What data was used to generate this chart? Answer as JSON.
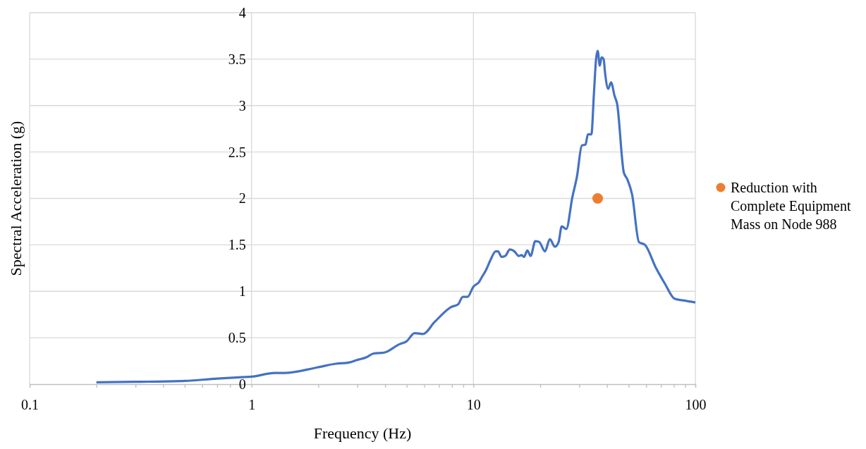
{
  "chart_data": {
    "type": "line",
    "xlabel": "Frequency (Hz)",
    "ylabel": "Spectral Acceleration (g)",
    "log": "x",
    "grid": true,
    "legend": "right",
    "marker": "none",
    "line_style": "solid",
    "xlim": [
      0.1,
      100
    ],
    "ylim": [
      0,
      4
    ],
    "xticks": [
      0.1,
      {
        "value": 0.2,
        "label": null
      },
      {
        "value": 0.3,
        "label": null
      },
      {
        "value": 0.4,
        "label": null
      },
      {
        "value": 0.5,
        "label": null
      },
      {
        "value": 0.6,
        "label": null
      },
      {
        "value": 0.7,
        "label": null
      },
      {
        "value": 0.8,
        "label": null
      },
      {
        "value": 0.9,
        "label": null
      },
      1,
      {
        "value": 2,
        "label": null
      },
      {
        "value": 3,
        "label": null
      },
      {
        "value": 4,
        "label": null
      },
      {
        "value": 5,
        "label": null
      },
      {
        "value": 6,
        "label": null
      },
      {
        "value": 7,
        "label": null
      },
      {
        "value": 8,
        "label": null
      },
      {
        "value": 9,
        "label": null
      },
      10,
      {
        "value": 20,
        "label": null
      },
      {
        "value": 30,
        "label": null
      },
      {
        "value": 40,
        "label": null
      },
      {
        "value": 50,
        "label": null
      },
      {
        "value": 60,
        "label": null
      },
      {
        "value": 70,
        "label": null
      },
      {
        "value": 80,
        "label": null
      },
      {
        "value": 90,
        "label": null
      },
      100
    ],
    "yticks": [
      0,
      0.5,
      1,
      1.5,
      2,
      2.5,
      3,
      3.5,
      4
    ],
    "series": [
      {
        "color": "#4472c4",
        "x": [
          0.2,
          0.3,
          0.5,
          0.7,
          0.9,
          1.0,
          1.27,
          1.4,
          1.98,
          2.4,
          2.71,
          2.99,
          3.3,
          3.55,
          3.96,
          4.64,
          4.99,
          5.43,
          5.92,
          6.69,
          7.93,
          8.53,
          8.96,
          9.4,
          10,
          10.6,
          10.9,
          11.4,
          11.9,
          12.6,
          12.9,
          13.4,
          13.9,
          14.6,
          15.3,
          16.0,
          16.5,
          16.9,
          17.5,
          18.1,
          19.0,
          19.8,
          21.0,
          22.1,
          23.3,
          24.2,
          25.0,
          26.2,
          27.9,
          29.3,
          30.8,
          32.0,
          32.8,
          34.0,
          34.9,
          35.7,
          36.3,
          37.1,
          37.8,
          38.6,
          39.2,
          40.5,
          41.7,
          43.3,
          44.4,
          47.6,
          49.3,
          51.9,
          55.7,
          59.3,
          66.5,
          73.0,
          80.6,
          89.1,
          100
        ],
        "values": [
          0.02,
          0.025,
          0.035,
          0.06,
          0.075,
          0.08,
          0.12,
          0.12,
          0.18,
          0.22,
          0.23,
          0.26,
          0.29,
          0.33,
          0.34,
          0.43,
          0.46,
          0.55,
          0.54,
          0.67,
          0.83,
          0.86,
          0.94,
          0.94,
          1.05,
          1.1,
          1.15,
          1.23,
          1.33,
          1.43,
          1.43,
          1.37,
          1.38,
          1.45,
          1.43,
          1.38,
          1.39,
          1.37,
          1.44,
          1.38,
          1.54,
          1.53,
          1.43,
          1.56,
          1.48,
          1.53,
          1.7,
          1.67,
          2.01,
          2.24,
          2.57,
          2.58,
          2.69,
          2.69,
          3.12,
          3.5,
          3.59,
          3.43,
          3.52,
          3.5,
          3.35,
          3.18,
          3.25,
          3.1,
          3.02,
          2.28,
          2.21,
          2.04,
          1.53,
          1.5,
          1.25,
          1.08,
          0.92,
          0.9,
          0.88
        ]
      },
      {
        "type": "scatter",
        "name": "Reduction with Complete Equipment Mass on Node 988",
        "color": "#ed7d31",
        "marker": "circle",
        "x": [
          36.3
        ],
        "values": [
          2.0
        ]
      }
    ]
  }
}
